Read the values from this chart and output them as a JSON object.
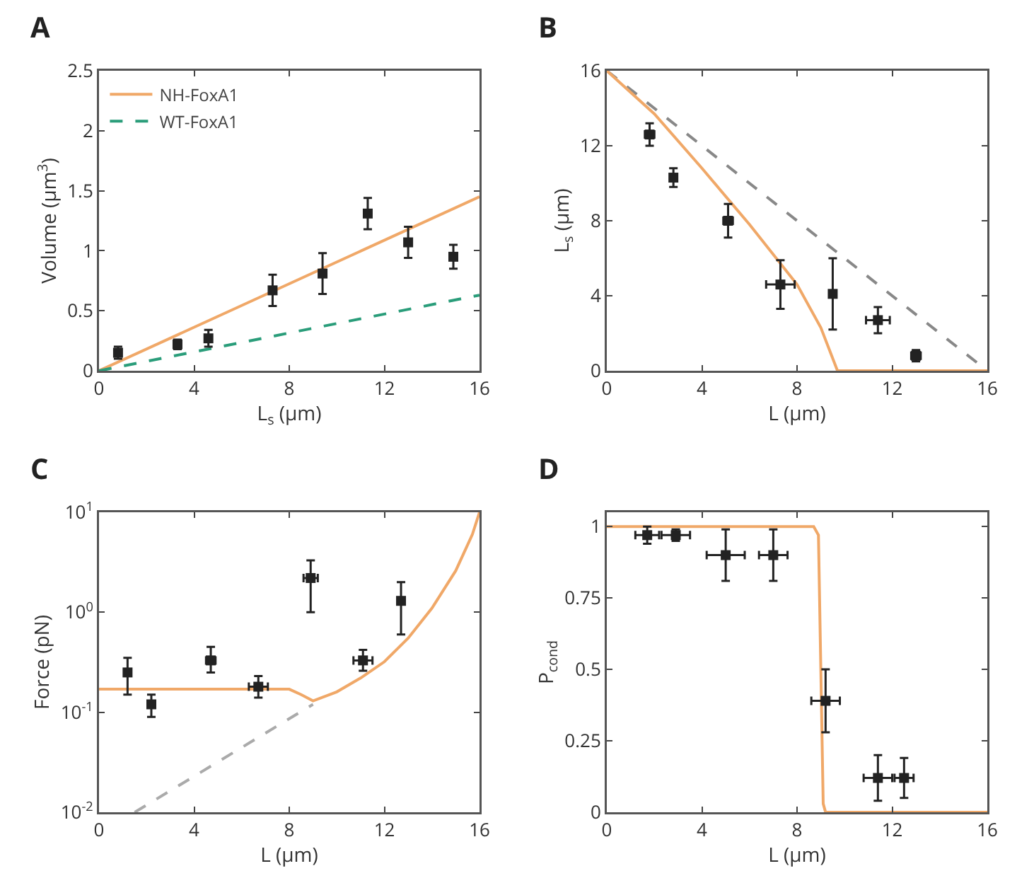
{
  "chart_data": [
    {
      "type": "scatter",
      "title": "A",
      "xlabel": "L$_{s}$ (μm)",
      "ylabel": "Volume (μm$^{3}$)",
      "xlim": [
        0,
        16
      ],
      "xticks": [
        0,
        4,
        8,
        12,
        16
      ],
      "ylim": [
        0,
        2.5
      ],
      "yticks": [
        0,
        0.5,
        1,
        1.5,
        2,
        2.5
      ],
      "grid": false,
      "legend": "top left",
      "series": [
        {
          "name": "NH-FoxA1",
          "type": "line",
          "color": "#f0a868",
          "line_style": "solid",
          "x": [
            0,
            16
          ],
          "values": [
            0,
            1.45
          ]
        },
        {
          "name": "WT-FoxA1",
          "type": "line",
          "color": "#2a9d7a",
          "line_style": "dashed",
          "x": [
            0,
            16
          ],
          "values": [
            0,
            0.63
          ]
        },
        {
          "color": "#222222",
          "marker": "square",
          "x": [
            0.8,
            3.3,
            4.6,
            7.3,
            9.4,
            11.3,
            13,
            14.9
          ],
          "values": [
            0.15,
            0.22,
            0.27,
            0.67,
            0.81,
            1.31,
            1.07,
            0.95
          ],
          "errors": [
            0.05,
            0.04,
            0.07,
            0.13,
            0.17,
            0.13,
            0.13,
            0.1
          ]
        }
      ]
    },
    {
      "type": "scatter",
      "title": "B",
      "xlabel": "L (μm)",
      "ylabel": "L$_{s}$ (μm)",
      "xlim": [
        0,
        16
      ],
      "xticks": [
        0,
        4,
        8,
        12,
        16
      ],
      "ylim": [
        0,
        16
      ],
      "yticks": [
        0,
        4,
        8,
        12,
        16
      ],
      "grid": false,
      "series": [
        {
          "type": "line",
          "color": "#888888",
          "line_style": "dashed",
          "x": [
            0,
            16
          ],
          "values": [
            16,
            0
          ]
        },
        {
          "type": "line",
          "color": "#f0a868",
          "line_style": "solid",
          "x": [
            0,
            2,
            4,
            6,
            8,
            9,
            9.7,
            16
          ],
          "values": [
            16,
            13.7,
            10.8,
            7.8,
            4.6,
            2.3,
            0,
            0
          ]
        },
        {
          "color": "#222222",
          "marker": "square",
          "x": [
            1.8,
            2.8,
            5.1,
            7.3,
            9.5,
            11.4,
            13
          ],
          "values": [
            12.6,
            10.3,
            8,
            4.6,
            4.1,
            2.7,
            0.8
          ],
          "errors": [
            0.6,
            0.5,
            0.9,
            1.3,
            1.9,
            0.7,
            0.3
          ],
          "xerrors": [
            0.2,
            0.1,
            0.2,
            0.6,
            0.1,
            0.5,
            0.2
          ]
        }
      ]
    },
    {
      "type": "scatter",
      "title": "C",
      "xlabel": "L (μm)",
      "ylabel": "Force (pN)",
      "log": "y",
      "xlim": [
        0,
        16
      ],
      "xticks": [
        0,
        4,
        8,
        12,
        16
      ],
      "ylim": [
        0.01,
        10
      ],
      "yticks": [
        {
          "value": 0.01,
          "label": "10$^{-2}$"
        },
        {
          "value": 0.1,
          "label": "10$^{-1}$"
        },
        {
          "value": 1,
          "label": "10$^{0}$"
        },
        {
          "value": 10,
          "label": "10$^{1}$"
        }
      ],
      "grid": false,
      "series": [
        {
          "type": "line",
          "color": "#aaaaaa",
          "line_style": "dashed",
          "x": [
            1.5,
            9
          ],
          "values": [
            0.01,
            0.12
          ]
        },
        {
          "type": "line",
          "color": "#f0a868",
          "line_style": "solid",
          "x": [
            0,
            8,
            8.5,
            9,
            10,
            11,
            12,
            13,
            14,
            15,
            15.7,
            16
          ],
          "values": [
            0.17,
            0.17,
            0.15,
            0.13,
            0.16,
            0.22,
            0.32,
            0.55,
            1.1,
            2.6,
            6,
            10
          ]
        },
        {
          "color": "#222222",
          "marker": "square",
          "x": [
            1.2,
            2.2,
            4.7,
            6.7,
            8.9,
            11.1,
            12.7
          ],
          "values": [
            0.25,
            0.12,
            0.33,
            0.18,
            2.2,
            0.33,
            1.3
          ],
          "errors": [
            [
              0.15,
              0.35
            ],
            [
              0.09,
              0.15
            ],
            [
              0.25,
              0.45
            ],
            [
              0.14,
              0.23
            ],
            [
              1,
              3.3
            ],
            [
              0.26,
              0.42
            ],
            [
              0.6,
              2
            ]
          ],
          "xerrors": [
            0.1,
            0.1,
            0.2,
            0.4,
            0.3,
            0.4,
            0.1
          ]
        }
      ]
    },
    {
      "type": "scatter",
      "title": "D",
      "xlabel": "L (μm)",
      "ylabel": "P$_{cond}$",
      "xlim": [
        0,
        16
      ],
      "xticks": [
        0,
        4,
        8,
        12,
        16
      ],
      "ylim": [
        0,
        1.05
      ],
      "yticks": [
        0,
        0.25,
        0.5,
        0.75,
        1
      ],
      "grid": false,
      "series": [
        {
          "type": "line",
          "color": "#f0a868",
          "line_style": "solid",
          "x": [
            0,
            8.7,
            8.9,
            9,
            9.1,
            9.2,
            16
          ],
          "values": [
            1,
            1,
            0.97,
            0.5,
            0.03,
            0,
            0
          ]
        },
        {
          "color": "#222222",
          "marker": "square",
          "x": [
            1.7,
            2.9,
            5,
            7,
            9.2,
            11.4,
            12.5
          ],
          "values": [
            0.97,
            0.97,
            0.9,
            0.9,
            0.39,
            0.12,
            0.12
          ],
          "errors": [
            0.03,
            0.02,
            0.09,
            0.09,
            0.11,
            0.08,
            0.07
          ],
          "xerrors": [
            0.5,
            0.6,
            0.8,
            0.6,
            0.6,
            0.6,
            0.4
          ]
        }
      ]
    }
  ]
}
